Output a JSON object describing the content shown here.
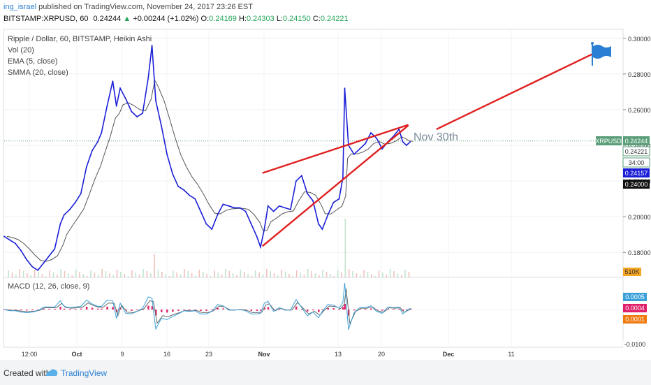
{
  "header": {
    "user": "ing_israel",
    "published": " published on TradingView.com, November 24, 2017 23:26 EST",
    "symbol": "BITSTAMP:XRPUSD, 60",
    "last": "0.24244",
    "up_arrow": "▲",
    "change": "+0.00244 (+1.02%)",
    "o_label": "O:",
    "o": "0.24169",
    "h_label": "H:",
    "h": "0.24303",
    "l_label": "L:",
    "l": "0.24150",
    "c_label": "C:",
    "c": "0.24221"
  },
  "legend": {
    "title": "Ripple / Dollar, 60, BITSTAMP, Heikin Ashi",
    "vol": "Vol (20)",
    "ema": "EMA (5, close)",
    "smma": "SMMA (20, close)",
    "macd": "MACD (12, 26, close, 9)"
  },
  "footer": {
    "created": "Created with",
    "brand": "TradingView"
  },
  "colors": {
    "price_line": "#1a1fd6",
    "smma_line": "#555555",
    "trend_lines": "#e02020",
    "macd_line": "#3aa0d8",
    "signal_line": "#666666",
    "histogram": "#e0206a",
    "last_price_tag": "#5a9e7a",
    "flag": "#2a7fd4"
  },
  "chart_data": {
    "type": "line",
    "title": "Ripple / Dollar, 60, BITSTAMP, Heikin Ashi",
    "x_ticks": [
      "12:00",
      "Oct",
      "9",
      "16",
      "23",
      "Nov",
      "13",
      "20",
      "Dec",
      "11"
    ],
    "y_ticks": [
      "0.30000",
      "0.28000",
      "0.26000",
      "0.24000",
      "0.22000",
      "0.20000",
      "0.18000"
    ],
    "ylim": [
      0.166,
      0.305
    ],
    "series": [
      {
        "name": "XRPUSD",
        "points": [
          [
            0,
            0.189
          ],
          [
            3,
            0.187
          ],
          [
            6,
            0.185
          ],
          [
            9,
            0.181
          ],
          [
            12,
            0.176
          ],
          [
            15,
            0.172
          ],
          [
            18,
            0.17
          ],
          [
            21,
            0.174
          ],
          [
            24,
            0.178
          ],
          [
            27,
            0.182
          ],
          [
            30,
            0.196
          ],
          [
            32,
            0.201
          ],
          [
            35,
            0.204
          ],
          [
            38,
            0.208
          ],
          [
            41,
            0.213
          ],
          [
            44,
            0.228
          ],
          [
            47,
            0.237
          ],
          [
            50,
            0.242
          ],
          [
            52,
            0.247
          ],
          [
            55,
            0.262
          ],
          [
            58,
            0.276
          ],
          [
            60,
            0.262
          ],
          [
            62,
            0.272
          ],
          [
            65,
            0.266
          ],
          [
            68,
            0.259
          ],
          [
            71,
            0.256
          ],
          [
            74,
            0.258
          ],
          [
            77,
            0.278
          ],
          [
            79,
            0.296
          ],
          [
            81,
            0.265
          ],
          [
            84,
            0.251
          ],
          [
            87,
            0.235
          ],
          [
            90,
            0.224
          ],
          [
            93,
            0.217
          ],
          [
            96,
            0.215
          ],
          [
            99,
            0.212
          ],
          [
            102,
            0.21
          ],
          [
            105,
            0.203
          ],
          [
            108,
            0.196
          ],
          [
            111,
            0.193
          ],
          [
            114,
            0.201
          ],
          [
            117,
            0.207
          ],
          [
            120,
            0.206
          ],
          [
            123,
            0.205
          ],
          [
            126,
            0.205
          ],
          [
            129,
            0.203
          ],
          [
            132,
            0.196
          ],
          [
            135,
            0.189
          ],
          [
            137,
            0.183
          ],
          [
            139,
            0.193
          ],
          [
            141,
            0.206
          ],
          [
            144,
            0.203
          ],
          [
            147,
            0.206
          ],
          [
            150,
            0.205
          ],
          [
            153,
            0.204
          ],
          [
            156,
            0.22
          ],
          [
            159,
            0.223
          ],
          [
            162,
            0.213
          ],
          [
            165,
            0.209
          ],
          [
            168,
            0.196
          ],
          [
            170,
            0.193
          ],
          [
            173,
            0.201
          ],
          [
            176,
            0.208
          ],
          [
            179,
            0.21
          ],
          [
            181,
            0.222
          ],
          [
            182,
            0.272
          ],
          [
            184,
            0.24
          ],
          [
            187,
            0.235
          ],
          [
            190,
            0.238
          ],
          [
            193,
            0.241
          ],
          [
            196,
            0.247
          ],
          [
            199,
            0.244
          ],
          [
            202,
            0.238
          ],
          [
            205,
            0.242
          ],
          [
            208,
            0.245
          ],
          [
            211,
            0.249
          ],
          [
            213,
            0.242
          ],
          [
            215,
            0.24
          ],
          [
            217,
            0.242
          ]
        ]
      }
    ],
    "last_price": 0.24244,
    "price_tags": [
      "0.24244",
      "0.24221",
      "0.24157",
      "0.24000"
    ],
    "price_tag_label": "XRPUSD",
    "countdown": "34:00",
    "volume_tag": "510K",
    "macd_ticks": [
      "0.0005",
      "0.0004",
      "0.0001",
      "-0.0100"
    ],
    "annotation": "Nov 30th",
    "trend_lines": [
      {
        "from": [
          138,
          0.1835
        ],
        "to": [
          216,
          0.2512
        ]
      },
      {
        "from": [
          138,
          0.2245
        ],
        "to": [
          216,
          0.2515
        ]
      },
      {
        "from": [
          231,
          0.249
        ],
        "to": [
          318,
          0.293
        ]
      }
    ]
  }
}
